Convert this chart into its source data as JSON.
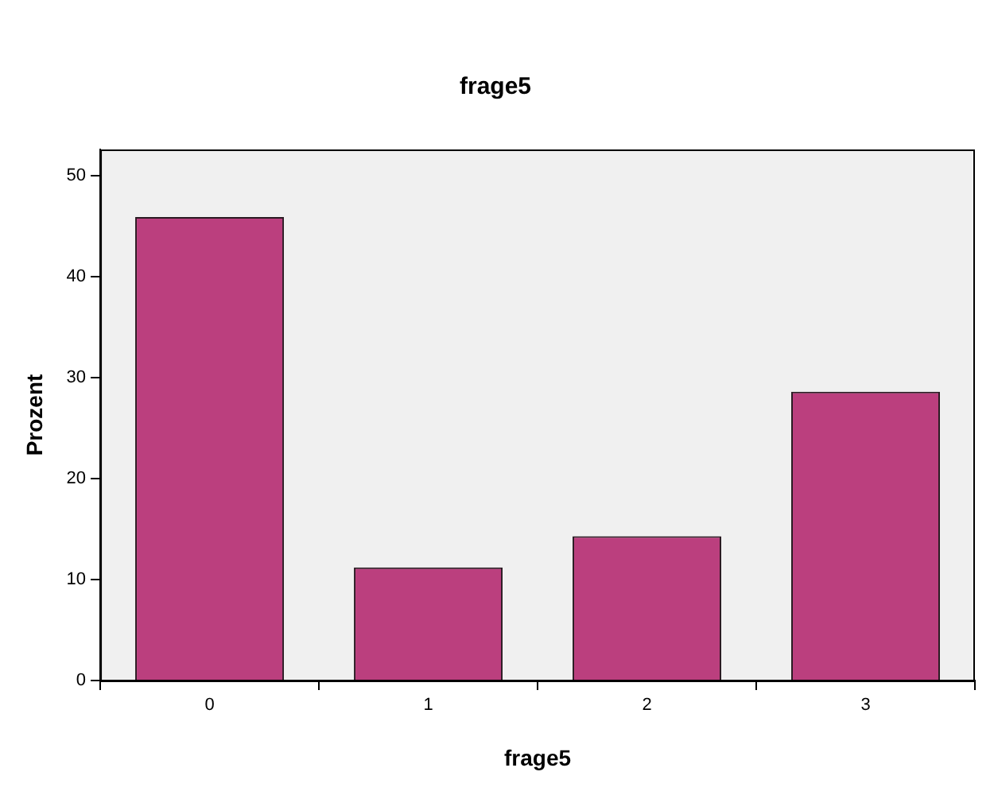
{
  "chart_data": {
    "type": "bar",
    "title": "frage5",
    "xlabel": "frage5",
    "ylabel": "Prozent",
    "categories": [
      "0",
      "1",
      "2",
      "3"
    ],
    "values": [
      45.9,
      11.2,
      14.3,
      28.6
    ],
    "color": "#bb3f7e",
    "ylim": [
      0,
      52.6
    ],
    "yticks": [
      0,
      10,
      20,
      30,
      40,
      50
    ],
    "grid": false,
    "legend": false
  }
}
